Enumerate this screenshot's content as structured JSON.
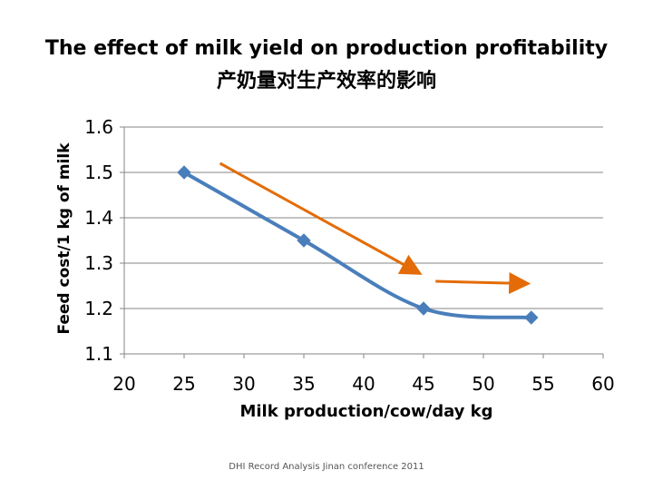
{
  "chart_data": {
    "type": "line",
    "title": "The effect of milk yield on production profitability",
    "subtitle": "产奶量对生产效率的影响",
    "xlabel": "Milk production/cow/day kg",
    "ylabel": "Feed cost/1 kg of milk",
    "xlim": [
      20,
      60
    ],
    "ylim": [
      1.1,
      1.6
    ],
    "x_ticks": [
      "20",
      "25",
      "30",
      "35",
      "40",
      "45",
      "50",
      "55",
      "60"
    ],
    "y_ticks": [
      "1.1",
      "1.2",
      "1.3",
      "1.4",
      "1.5",
      "1.6"
    ],
    "grid": "horizontal",
    "series": [
      {
        "x": [
          25,
          35,
          45,
          54
        ],
        "y": [
          1.5,
          1.35,
          1.2,
          1.18
        ],
        "color": "#4a7ebb"
      }
    ],
    "annotations": [
      {
        "type": "arrow",
        "from": [
          28,
          1.52
        ],
        "to": [
          44.5,
          1.28
        ],
        "color": "#e36c09"
      },
      {
        "type": "arrow",
        "from": [
          46,
          1.26
        ],
        "to": [
          53.5,
          1.255
        ],
        "color": "#e36c09"
      }
    ]
  },
  "footer": "DHI Record Analysis Jinan conference 2011"
}
